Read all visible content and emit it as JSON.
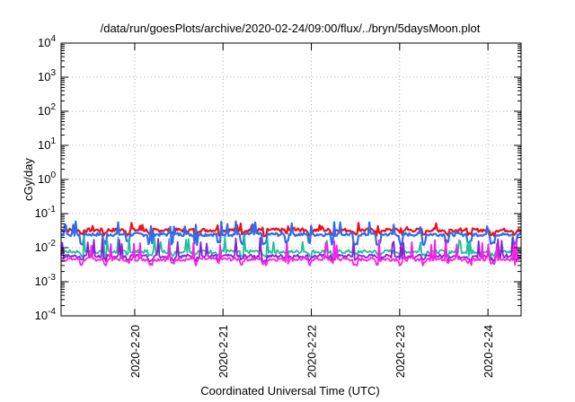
{
  "chart_data": {
    "type": "line",
    "title": "/data/run/goesPlots/archive/2020-02-24/09:00/flux/../bryn/5daysMoon.plot",
    "xlabel": "Coordinated Universal Time (UTC)",
    "ylabel": "cGy/day",
    "yscale": "log",
    "ylim": [
      0.0001,
      10000
    ],
    "yticks": [
      {
        "base": "10",
        "exp": "-4",
        "value": 0.0001
      },
      {
        "base": "10",
        "exp": "-3",
        "value": 0.001
      },
      {
        "base": "10",
        "exp": "-2",
        "value": 0.01
      },
      {
        "base": "10",
        "exp": "-1",
        "value": 0.1
      },
      {
        "base": "10",
        "exp": "0",
        "value": 1
      },
      {
        "base": "10",
        "exp": "1",
        "value": 10
      },
      {
        "base": "10",
        "exp": "2",
        "value": 100
      },
      {
        "base": "10",
        "exp": "3",
        "value": 1000
      },
      {
        "base": "10",
        "exp": "4",
        "value": 10000
      }
    ],
    "xlim": [
      "2020-02-19 04:00",
      "2020-02-24 09:00"
    ],
    "xticks": [
      {
        "label": "2020-2-20",
        "value": "2020-02-20 00:00"
      },
      {
        "label": "2020-2-21",
        "value": "2020-02-21 00:00"
      },
      {
        "label": "2020-2-22",
        "value": "2020-02-22 00:00"
      },
      {
        "label": "2020-2-23",
        "value": "2020-02-23 00:00"
      },
      {
        "label": "2020-2-24",
        "value": "2020-02-24 00:00"
      }
    ],
    "grid": true,
    "series": [
      {
        "color": "#e8121b",
        "base": 0.032,
        "low": 0.025,
        "spike": 0.045
      },
      {
        "color": "#2e6cf0",
        "base": 0.024,
        "low": 0.014,
        "spike": 0.05
      },
      {
        "color": "#1fbf9a",
        "base": 0.0075,
        "low": 0.006,
        "spike": 0.018
      },
      {
        "color": "#8a1fd6",
        "base": 0.0055,
        "low": 0.0045,
        "spike": 0.016
      },
      {
        "color": "#ff1ee8",
        "base": 0.0045,
        "low": 0.0035,
        "spike": 0.014
      }
    ]
  }
}
